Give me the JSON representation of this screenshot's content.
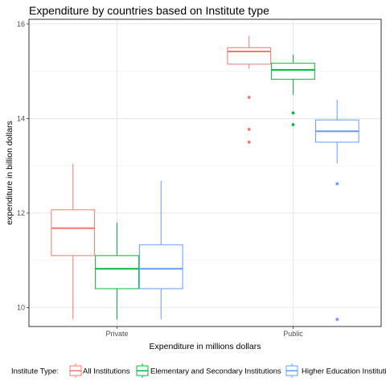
{
  "chart_data": {
    "type": "boxplot",
    "title": "Expenditure by countries based on Institute type",
    "xlabel": "Expenditure in millions dollars",
    "ylabel": "expenditure in billion dollars",
    "categories": [
      "Private",
      "Public"
    ],
    "ylim": [
      9.6,
      16.1
    ],
    "yticks": [
      10,
      12,
      14,
      16
    ],
    "grid": true,
    "legend": {
      "title": "Institute Type:",
      "position": "bottom"
    },
    "series": [
      {
        "name": "All Institutions",
        "color": "#F8766D",
        "boxes": [
          {
            "category": "Private",
            "min": 9.75,
            "q1": 11.1,
            "median": 11.68,
            "q3": 12.07,
            "max": 13.05,
            "outliers": []
          },
          {
            "category": "Public",
            "min": 15.05,
            "q1": 15.15,
            "median": 15.42,
            "q3": 15.5,
            "max": 15.75,
            "outliers": [
              14.45,
              13.77,
              13.5
            ]
          }
        ]
      },
      {
        "name": "Elementary and Secondary Institutions",
        "color": "#00BA38",
        "boxes": [
          {
            "category": "Private",
            "min": 9.75,
            "q1": 10.4,
            "median": 10.82,
            "q3": 11.1,
            "max": 11.8,
            "outliers": []
          },
          {
            "category": "Public",
            "min": 14.5,
            "q1": 14.83,
            "median": 15.03,
            "q3": 15.17,
            "max": 15.35,
            "outliers": [
              14.12,
              13.87
            ]
          }
        ]
      },
      {
        "name": "Higher Education Institutions",
        "color": "#619CFF",
        "boxes": [
          {
            "category": "Private",
            "min": 9.75,
            "q1": 10.4,
            "median": 10.82,
            "q3": 11.33,
            "max": 12.68,
            "outliers": []
          },
          {
            "category": "Public",
            "min": 13.05,
            "q1": 13.5,
            "median": 13.73,
            "q3": 13.97,
            "max": 14.4,
            "outliers": [
              12.62,
              9.75
            ]
          }
        ]
      }
    ]
  }
}
